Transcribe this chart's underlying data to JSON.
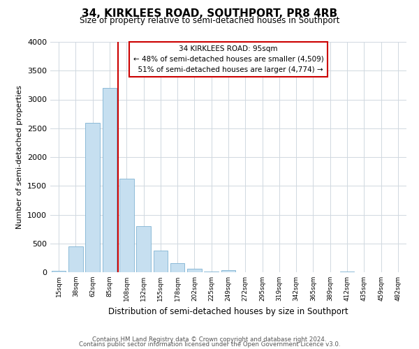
{
  "title": "34, KIRKLEES ROAD, SOUTHPORT, PR8 4RB",
  "subtitle": "Size of property relative to semi-detached houses in Southport",
  "xlabel": "Distribution of semi-detached houses by size in Southport",
  "ylabel": "Number of semi-detached properties",
  "footnote1": "Contains HM Land Registry data © Crown copyright and database right 2024.",
  "footnote2": "Contains public sector information licensed under the Open Government Licence v3.0.",
  "bin_labels": [
    "15sqm",
    "38sqm",
    "62sqm",
    "85sqm",
    "108sqm",
    "132sqm",
    "155sqm",
    "178sqm",
    "202sqm",
    "225sqm",
    "249sqm",
    "272sqm",
    "295sqm",
    "319sqm",
    "342sqm",
    "365sqm",
    "389sqm",
    "412sqm",
    "435sqm",
    "459sqm",
    "482sqm"
  ],
  "bar_values": [
    30,
    450,
    2600,
    3200,
    1630,
    800,
    380,
    155,
    60,
    15,
    40,
    5,
    0,
    0,
    0,
    0,
    0,
    10,
    0,
    0,
    0
  ],
  "bar_color": "#c6dff0",
  "bar_edge_color": "#7fb3d3",
  "highlight_line_color": "#cc0000",
  "annotation_title": "34 KIRKLEES ROAD: 95sqm",
  "annotation_line1": "← 48% of semi-detached houses are smaller (4,509)",
  "annotation_line2": "  51% of semi-detached houses are larger (4,774) →",
  "annotation_box_color": "#ffffff",
  "annotation_box_edge": "#cc0000",
  "ylim": [
    0,
    4000
  ],
  "yticks": [
    0,
    500,
    1000,
    1500,
    2000,
    2500,
    3000,
    3500,
    4000
  ],
  "background_color": "#ffffff",
  "grid_color": "#d0d8e0"
}
